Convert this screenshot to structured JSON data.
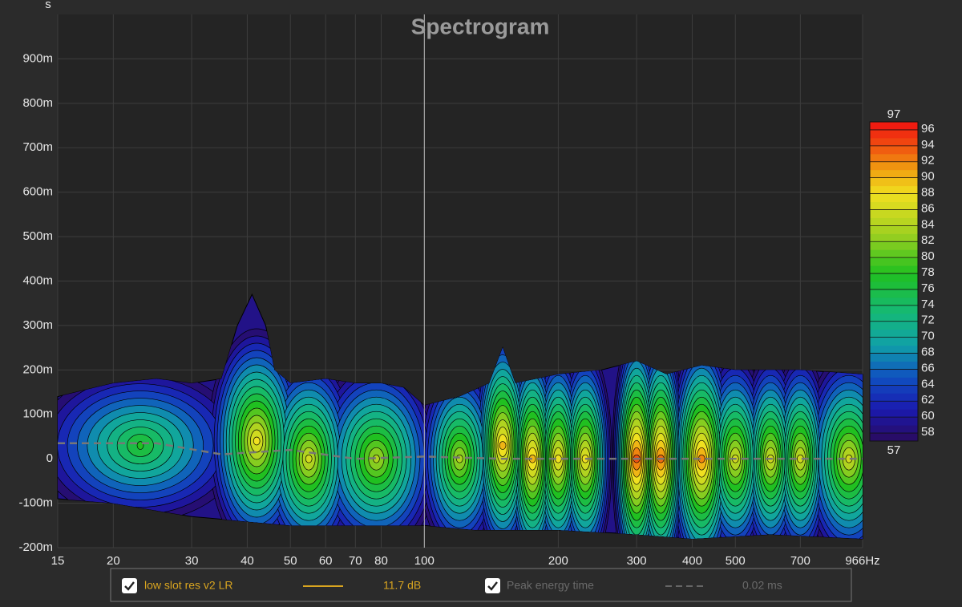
{
  "chart_data": {
    "type": "spectrogram",
    "title": "Spectrogram",
    "y_label": "s",
    "xlim": [
      15,
      966
    ],
    "x_log": true,
    "xticks": [
      15,
      20,
      30,
      40,
      50,
      60,
      70,
      80,
      100,
      200,
      300,
      400,
      500,
      700,
      {
        "value": 966,
        "label": "966Hz"
      }
    ],
    "ylim": [
      -0.2,
      1.0
    ],
    "yticks": [
      {
        "value": -0.2,
        "label": "-200m"
      },
      {
        "value": -0.1,
        "label": "-100m"
      },
      0,
      {
        "value": 0.1,
        "label": "100m"
      },
      {
        "value": 0.2,
        "label": "200m"
      },
      {
        "value": 0.3,
        "label": "300m"
      },
      {
        "value": 0.4,
        "label": "400m"
      },
      {
        "value": 0.5,
        "label": "500m"
      },
      {
        "value": 0.6,
        "label": "600m"
      },
      {
        "value": 0.7,
        "label": "700m"
      },
      {
        "value": 0.8,
        "label": "800m"
      },
      {
        "value": 0.9,
        "label": "900m"
      }
    ],
    "grid": true,
    "cursor_x": 100,
    "upper_envelope": {
      "x": [
        15,
        20,
        25,
        30,
        35,
        38,
        41,
        44,
        46,
        50,
        60,
        70,
        80,
        90,
        100,
        120,
        140,
        150,
        160,
        200,
        250,
        300,
        350,
        420,
        500,
        700,
        966
      ],
      "values": [
        0.14,
        0.17,
        0.18,
        0.17,
        0.18,
        0.3,
        0.37,
        0.3,
        0.2,
        0.17,
        0.18,
        0.17,
        0.17,
        0.16,
        0.12,
        0.14,
        0.17,
        0.25,
        0.17,
        0.19,
        0.2,
        0.22,
        0.19,
        0.21,
        0.2,
        0.2,
        0.19
      ]
    },
    "lower_envelope": {
      "x": [
        15,
        20,
        30,
        50,
        100,
        130,
        200,
        300,
        400,
        600,
        966
      ],
      "values": [
        -0.09,
        -0.1,
        -0.13,
        -0.15,
        -0.15,
        -0.16,
        -0.16,
        -0.17,
        -0.18,
        -0.17,
        -0.18
      ]
    },
    "peaks": {
      "x": [
        23,
        42,
        55,
        78,
        120,
        150,
        175,
        200,
        230,
        300,
        340,
        420,
        500,
        600,
        700,
        900
      ],
      "y": [
        0.03,
        0.04,
        0.0,
        0.0,
        0.0,
        0.03,
        0.0,
        0.0,
        0.0,
        0.0,
        0.0,
        0.0,
        0.0,
        0.0,
        0.0,
        0.0
      ],
      "values": [
        78,
        88,
        86,
        84,
        84,
        90,
        90,
        88,
        88,
        94,
        93,
        92,
        86,
        86,
        86,
        86
      ]
    },
    "peak_energy_time": {
      "x": [
        15,
        25,
        35,
        50,
        70,
        100,
        150,
        300,
        966
      ],
      "values": [
        0.035,
        0.035,
        0.01,
        0.02,
        0.0,
        0.005,
        0.0,
        0.0,
        0.0
      ],
      "color": "#777777"
    },
    "colorbar": {
      "lim": [
        57,
        97
      ],
      "top_label": "97",
      "bottom_label": "57",
      "ticks": [
        58,
        60,
        62,
        64,
        66,
        68,
        70,
        72,
        74,
        76,
        78,
        80,
        82,
        84,
        86,
        88,
        90,
        92,
        94,
        96
      ]
    },
    "colormap": [
      {
        "value": 57,
        "color": "#2a0a5e"
      },
      {
        "value": 61,
        "color": "#1a1ab0"
      },
      {
        "value": 65,
        "color": "#1050c0"
      },
      {
        "value": 69,
        "color": "#10a0a8"
      },
      {
        "value": 73,
        "color": "#15b878"
      },
      {
        "value": 78,
        "color": "#20c020"
      },
      {
        "value": 83,
        "color": "#a0d020"
      },
      {
        "value": 88,
        "color": "#f0e020"
      },
      {
        "value": 91,
        "color": "#f0a010"
      },
      {
        "value": 94,
        "color": "#f05010"
      },
      {
        "value": 97,
        "color": "#f01010"
      }
    ],
    "legend": {
      "name": "low slot res v2 LR",
      "color": "#d9a520",
      "value_label": "11.7 dB",
      "peak_name": "Peak energy time",
      "peak_value_label": "0.02 ms"
    }
  }
}
